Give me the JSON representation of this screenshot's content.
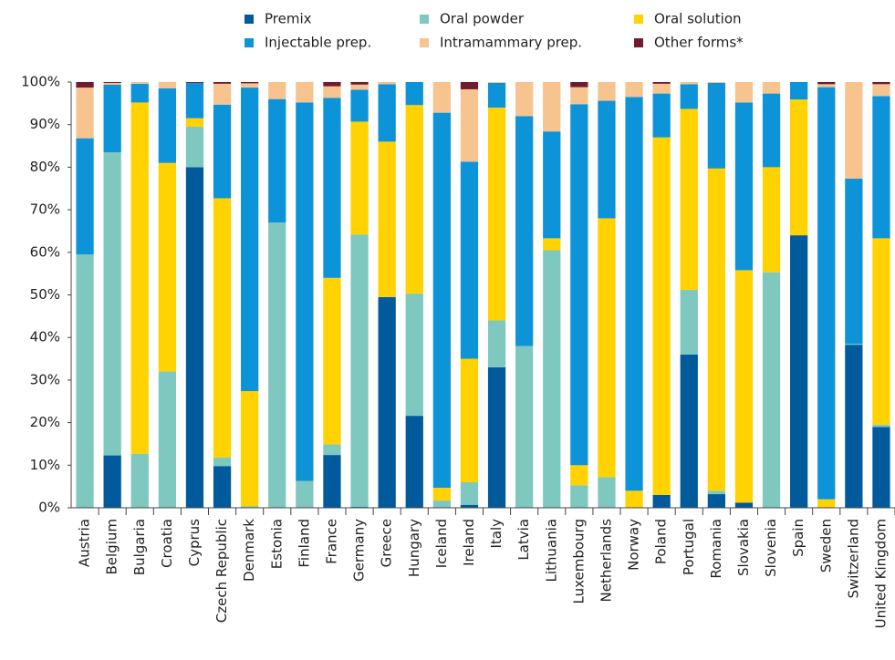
{
  "chart_data": {
    "type": "stacked_bar",
    "categories": [
      "Austria",
      "Belgium",
      "Bulgaria",
      "Croatia",
      "Cyprus",
      "Czech Republic",
      "Denmark",
      "Estonia",
      "Finland",
      "France",
      "Germany",
      "Greece",
      "Hungary",
      "Iceland",
      "Ireland",
      "Italy",
      "Latvia",
      "Lithuania",
      "Luxembourg",
      "Netherlands",
      "Norway",
      "Poland",
      "Portugal",
      "Romania",
      "Slovakia",
      "Slovenia",
      "Spain",
      "Sweden",
      "Switzerland",
      "United Kingdom"
    ],
    "series": [
      {
        "name": "Premix",
        "color": "#005a9b",
        "values": [
          0,
          12.3,
          0,
          0,
          80,
          9.8,
          0,
          0,
          0,
          12.4,
          0.2,
          49.5,
          21.6,
          0,
          0.7,
          33,
          0,
          0,
          0,
          0,
          0,
          3,
          36,
          3.2,
          1.2,
          0,
          64,
          0,
          38.3,
          19
        ]
      },
      {
        "name": "Oral powder",
        "color": "#7ec8c0",
        "values": [
          59.5,
          71.2,
          12.7,
          32,
          9.5,
          2,
          0.4,
          67,
          6.3,
          2.5,
          64,
          0,
          28.7,
          1.7,
          5.3,
          11,
          38,
          60.5,
          5.3,
          7.2,
          0,
          0,
          15.2,
          0.8,
          0,
          55.3,
          0,
          0,
          0.2,
          0.5
        ]
      },
      {
        "name": "Oral solution",
        "color": "#ffd200",
        "values": [
          0,
          0,
          82.5,
          49,
          2,
          60.9,
          27,
          0,
          0,
          39.1,
          26.5,
          36.5,
          44.3,
          3,
          29,
          50,
          0,
          2.8,
          4.7,
          60.8,
          4,
          84,
          42.5,
          75.7,
          54.6,
          24.7,
          31.9,
          2,
          0,
          43.8
        ]
      },
      {
        "name": "Injectable prep.",
        "color": "#0d93d8",
        "values": [
          27.3,
          15.9,
          4.4,
          17.5,
          8.3,
          22,
          71.3,
          29,
          88.9,
          42.3,
          7.5,
          13.5,
          5.4,
          88.1,
          46.3,
          5.8,
          54,
          25.1,
          84.8,
          27.6,
          92.5,
          10.3,
          5.8,
          20.1,
          39.4,
          17.3,
          4.1,
          96.8,
          38.8,
          33.4
        ]
      },
      {
        "name": "Intramammary prep.",
        "color": "#f7c38f",
        "values": [
          11.9,
          0.4,
          0.4,
          1.5,
          0,
          4.9,
          1,
          4,
          4.8,
          2.7,
          1.2,
          0.5,
          0,
          7.2,
          17,
          0.2,
          8,
          11.6,
          4,
          4.4,
          3.5,
          2.3,
          0.5,
          0.2,
          4.8,
          2.7,
          0,
          0.7,
          22.7,
          2.8
        ]
      },
      {
        "name": "Other forms*",
        "color": "#6f1c30",
        "values": [
          1.3,
          0.2,
          0,
          0,
          0.2,
          0.4,
          0.3,
          0,
          0,
          1,
          0.6,
          0,
          0,
          0,
          1.7,
          0,
          0,
          0,
          1.2,
          0,
          0,
          0.4,
          0,
          0,
          0,
          0,
          0,
          0.5,
          0,
          0.5
        ]
      }
    ],
    "ylim": [
      0,
      100
    ],
    "yticks": [
      {
        "value": 0,
        "label": "0%"
      },
      {
        "value": 10,
        "label": "10%"
      },
      {
        "value": 20,
        "label": "20%"
      },
      {
        "value": 30,
        "label": "30%"
      },
      {
        "value": 40,
        "label": "40%"
      },
      {
        "value": 50,
        "label": "50%"
      },
      {
        "value": 60,
        "label": "60%"
      },
      {
        "value": 70,
        "label": "70%"
      },
      {
        "value": 80,
        "label": "80%"
      },
      {
        "value": 90,
        "label": "90%"
      },
      {
        "value": 100,
        "label": "100%"
      }
    ],
    "legend": "top"
  }
}
